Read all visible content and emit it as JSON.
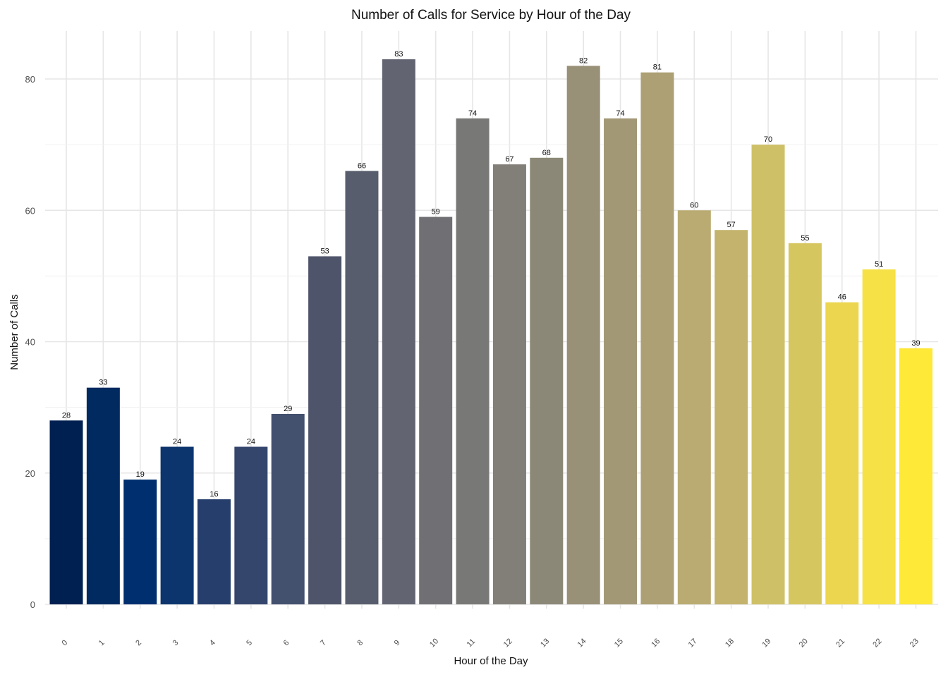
{
  "chart_data": {
    "type": "bar",
    "title": "Number of Calls for Service by Hour of the Day",
    "xlabel": "Hour of the Day",
    "ylabel": "Number of Calls",
    "categories": [
      "0",
      "1",
      "2",
      "3",
      "4",
      "5",
      "6",
      "7",
      "8",
      "9",
      "10",
      "11",
      "12",
      "13",
      "14",
      "15",
      "16",
      "17",
      "18",
      "19",
      "20",
      "21",
      "22",
      "23"
    ],
    "values": [
      28,
      33,
      19,
      24,
      16,
      24,
      29,
      53,
      66,
      83,
      59,
      74,
      67,
      68,
      82,
      74,
      81,
      60,
      57,
      70,
      55,
      46,
      51,
      39
    ],
    "ylim": [
      0,
      87
    ],
    "yticks": [
      0,
      20,
      40,
      60,
      80
    ],
    "grid": true,
    "legend": "none",
    "data_labels": true,
    "x_tick_rotation": -45,
    "colors": [
      "#002051",
      "#002A60",
      "#002F70",
      "#0C356D",
      "#253E6C",
      "#34466C",
      "#43506E",
      "#4E546A",
      "#585D6D",
      "#626471",
      "#6F6F74",
      "#787876",
      "#827F78",
      "#8C8877",
      "#989077",
      "#A29876",
      "#ACA074",
      "#B9AB71",
      "#C3B36C",
      "#CEC067",
      "#D6C660",
      "#ECD650",
      "#F6E146",
      "#FEE838"
    ]
  }
}
